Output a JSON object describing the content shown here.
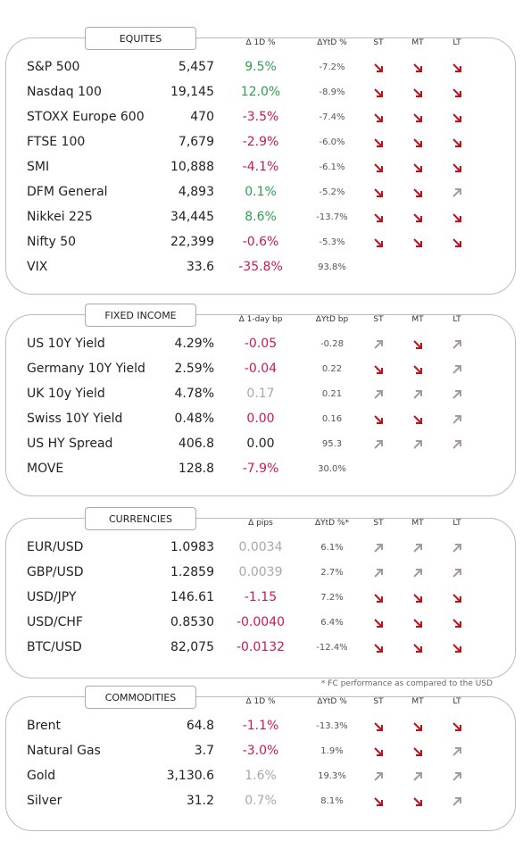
{
  "sections": [
    {
      "title": "EQUITES",
      "change_header": "Δ 1D %",
      "ytd_header": "ΔYtD %",
      "horizons": [
        "ST",
        "MT",
        "LT"
      ],
      "rows": [
        {
          "cells": [
            "S&P 500",
            "5,457",
            "9.5%",
            "-7.2%"
          ],
          "change_color": "green",
          "trends": [
            "down",
            "down",
            "down"
          ]
        },
        {
          "cells": [
            "Nasdaq 100",
            "19,145",
            "12.0%",
            "-8.9%"
          ],
          "change_color": "green",
          "trends": [
            "down",
            "down",
            "down"
          ]
        },
        {
          "cells": [
            "STOXX Europe 600",
            "470",
            "-3.5%",
            "-7.4%"
          ],
          "change_color": "red",
          "trends": [
            "down",
            "down",
            "down"
          ]
        },
        {
          "cells": [
            "FTSE 100",
            "7,679",
            "-2.9%",
            "-6.0%"
          ],
          "change_color": "red",
          "trends": [
            "down",
            "down",
            "down"
          ]
        },
        {
          "cells": [
            "SMI",
            "10,888",
            "-4.1%",
            "-6.1%"
          ],
          "change_color": "red",
          "trends": [
            "down",
            "down",
            "down"
          ]
        },
        {
          "cells": [
            "DFM General",
            "4,893",
            "0.1%",
            "-5.2%"
          ],
          "change_color": "green",
          "trends": [
            "down",
            "down",
            "up"
          ]
        },
        {
          "cells": [
            "Nikkei 225",
            "34,445",
            "8.6%",
            "-13.7%"
          ],
          "change_color": "green",
          "trends": [
            "down",
            "down",
            "down"
          ]
        },
        {
          "cells": [
            "Nifty  50",
            "22,399",
            "-0.6%",
            "-5.3%"
          ],
          "change_color": "red",
          "trends": [
            "down",
            "down",
            "down"
          ]
        },
        {
          "cells": [
            "VIX",
            "33.6",
            "-35.8%",
            "93.8%"
          ],
          "change_color": "red",
          "trends": []
        }
      ]
    },
    {
      "title": "FIXED INCOME",
      "change_header": "Δ 1-day bp",
      "ytd_header": "ΔYtD bp",
      "horizons": [
        "ST",
        "MT",
        "LT"
      ],
      "rows": [
        {
          "cells": [
            "US 10Y Yield",
            "4.29%",
            "-0.05",
            "-0.28"
          ],
          "change_color": "red",
          "trends": [
            "up",
            "down",
            "up"
          ]
        },
        {
          "cells": [
            "Germany 10Y Yield",
            "2.59%",
            "-0.04",
            "0.22"
          ],
          "change_color": "red",
          "trends": [
            "down",
            "down",
            "up"
          ]
        },
        {
          "cells": [
            "UK 10y Yield",
            "4.78%",
            "0.17",
            "0.21"
          ],
          "change_color": "grey",
          "trends": [
            "up",
            "up",
            "up"
          ]
        },
        {
          "cells": [
            "Swiss 10Y Yield",
            "0.48%",
            "0.00",
            "0.16"
          ],
          "change_color": "red",
          "trends": [
            "down",
            "down",
            "up"
          ]
        },
        {
          "cells": [
            "US HY Spread",
            "406.8",
            "0.00",
            "95.3"
          ],
          "change_color": "black",
          "trends": [
            "up",
            "up",
            "up"
          ]
        },
        {
          "cells": [
            "MOVE",
            "128.8",
            "-7.9%",
            "30.0%"
          ],
          "change_color": "red",
          "trends": []
        }
      ]
    },
    {
      "title": "CURRENCIES",
      "change_header": "Δ pips",
      "ytd_header": "ΔYtD %*",
      "horizons": [
        "ST",
        "MT",
        "LT"
      ],
      "rows": [
        {
          "cells": [
            "EUR/USD",
            "1.0983",
            "0.0034",
            "6.1%"
          ],
          "change_color": "grey",
          "trends": [
            "up",
            "up",
            "up"
          ]
        },
        {
          "cells": [
            "GBP/USD",
            "1.2859",
            "0.0039",
            "2.7%"
          ],
          "change_color": "grey",
          "trends": [
            "up",
            "up",
            "up"
          ]
        },
        {
          "cells": [
            "USD/JPY",
            "146.61",
            "-1.15",
            "7.2%"
          ],
          "change_color": "red",
          "trends": [
            "down",
            "down",
            "down"
          ]
        },
        {
          "cells": [
            "USD/CHF",
            "0.8530",
            "-0.0040",
            "6.4%"
          ],
          "change_color": "red",
          "trends": [
            "down",
            "down",
            "down"
          ]
        },
        {
          "cells": [
            "BTC/USD",
            "82,075",
            "-0.0132",
            "-12.4%"
          ],
          "change_color": "red",
          "trends": [
            "down",
            "down",
            "down"
          ]
        }
      ],
      "footnote": "* FC performance as compared to the USD"
    },
    {
      "title": "COMMODITIES",
      "change_header": "Δ 1D %",
      "ytd_header": "ΔYtD %",
      "horizons": [
        "ST",
        "MT",
        "LT"
      ],
      "rows": [
        {
          "cells": [
            "Brent",
            "64.8",
            "-1.1%",
            "-13.3%"
          ],
          "change_color": "red",
          "trends": [
            "down",
            "down",
            "down"
          ]
        },
        {
          "cells": [
            "Natural Gas",
            "3.7",
            "-3.0%",
            "1.9%"
          ],
          "change_color": "red",
          "trends": [
            "down",
            "down",
            "up"
          ]
        },
        {
          "cells": [
            "Gold",
            "3,130.6",
            "1.6%",
            "19.3%"
          ],
          "change_color": "grey",
          "trends": [
            "up",
            "up",
            "up"
          ]
        },
        {
          "cells": [
            "Silver",
            "31.2",
            "0.7%",
            "8.1%"
          ],
          "change_color": "grey",
          "trends": [
            "down",
            "down",
            "up"
          ]
        }
      ]
    }
  ]
}
